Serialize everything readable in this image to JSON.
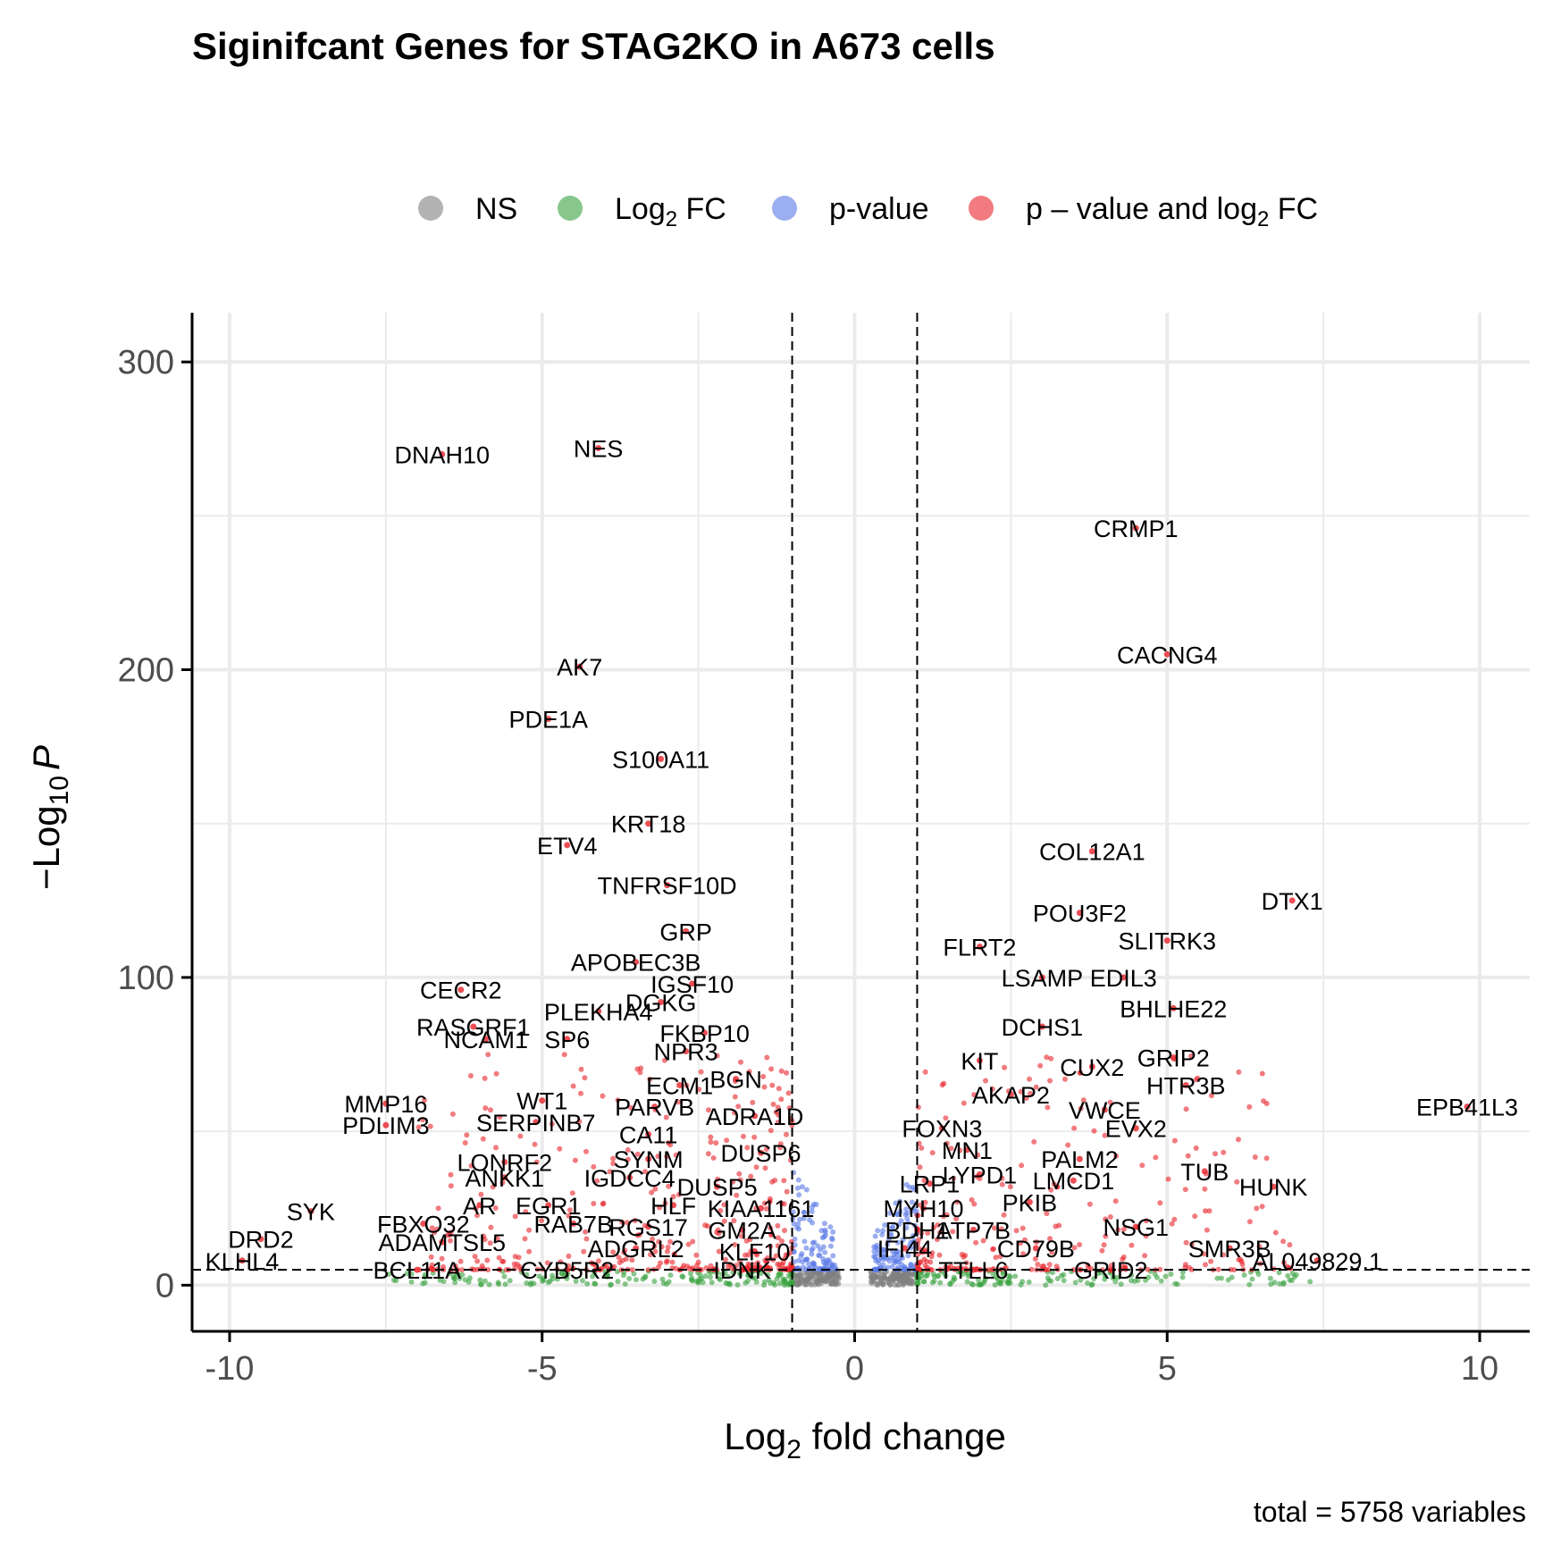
{
  "chart_data": {
    "type": "scatter",
    "title": "Siginifcant Genes for STAG2KO in A673 cells",
    "xlabel_main": "Log",
    "xlabel_sub": "2",
    "xlabel_rest": " fold change",
    "ylabel_prefix": "−Log",
    "ylabel_sub": "10",
    "ylabel_italic": "P",
    "caption": "total = 5758 variables",
    "xlim": [
      -10.6,
      10.8
    ],
    "ylim": [
      -15,
      316
    ],
    "x_ticks": [
      -10,
      -5,
      0,
      5,
      10
    ],
    "x_tick_labels": [
      "-10",
      "-5",
      "0",
      "5",
      "10"
    ],
    "y_ticks": [
      0,
      100,
      200,
      300
    ],
    "y_tick_labels": [
      "0",
      "100",
      "200",
      "300"
    ],
    "fc_cutoff": 1,
    "p_cutoff": 5,
    "grid": true,
    "legend_position": "top",
    "legend": [
      {
        "key": "ns",
        "label": "NS",
        "color": "#808080"
      },
      {
        "key": "fc",
        "label": "Log",
        "sub": "2",
        "rest": " FC",
        "color": "#38a13f"
      },
      {
        "key": "p",
        "label": "p-value",
        "color": "#5978e6"
      },
      {
        "key": "both",
        "label": "p – value and log",
        "sub": "2",
        "rest": " FC",
        "color": "#e8232a"
      }
    ],
    "labeled_points": [
      {
        "gene": "DNAH10",
        "x": -6.6,
        "y": 270
      },
      {
        "gene": "NES",
        "x": -4.1,
        "y": 272
      },
      {
        "gene": "CRMP1",
        "x": 4.5,
        "y": 246
      },
      {
        "gene": "CACNG4",
        "x": 5.0,
        "y": 205
      },
      {
        "gene": "AK7",
        "x": -4.4,
        "y": 201
      },
      {
        "gene": "PDE1A",
        "x": -4.9,
        "y": 184
      },
      {
        "gene": "S100A11",
        "x": -3.1,
        "y": 171
      },
      {
        "gene": "KRT18",
        "x": -3.3,
        "y": 150
      },
      {
        "gene": "ETV4",
        "x": -4.6,
        "y": 143
      },
      {
        "gene": "COL12A1",
        "x": 3.8,
        "y": 141
      },
      {
        "gene": "DTX1",
        "x": 7.0,
        "y": 125
      },
      {
        "gene": "TNFRSF10D",
        "x": -3.0,
        "y": 130
      },
      {
        "gene": "POU3F2",
        "x": 3.6,
        "y": 121
      },
      {
        "gene": "GRP",
        "x": -2.7,
        "y": 115
      },
      {
        "gene": "FLRT2",
        "x": 2.0,
        "y": 110
      },
      {
        "gene": "SLITRK3",
        "x": 5.0,
        "y": 112
      },
      {
        "gene": "APOBEC3B",
        "x": -3.5,
        "y": 105
      },
      {
        "gene": "IGSF10",
        "x": -2.6,
        "y": 98
      },
      {
        "gene": "LSAMP",
        "x": 3.0,
        "y": 100
      },
      {
        "gene": "EDIL3",
        "x": 4.3,
        "y": 100
      },
      {
        "gene": "CECR2",
        "x": -6.3,
        "y": 96
      },
      {
        "gene": "PLEKHA4",
        "x": -4.1,
        "y": 89
      },
      {
        "gene": "DGKG",
        "x": -3.1,
        "y": 92
      },
      {
        "gene": "BHLHE22",
        "x": 5.1,
        "y": 90
      },
      {
        "gene": "RASGRF1",
        "x": -6.1,
        "y": 84
      },
      {
        "gene": "SP6",
        "x": -4.6,
        "y": 80
      },
      {
        "gene": "FKBP10",
        "x": -2.4,
        "y": 82
      },
      {
        "gene": "DCHS1",
        "x": 3.0,
        "y": 84
      },
      {
        "gene": "NCAM1",
        "x": -5.9,
        "y": 80
      },
      {
        "gene": "NPR3",
        "x": -2.7,
        "y": 76
      },
      {
        "gene": "KIT",
        "x": 2.0,
        "y": 73
      },
      {
        "gene": "GRIP2",
        "x": 5.1,
        "y": 74
      },
      {
        "gene": "CUX2",
        "x": 3.8,
        "y": 71
      },
      {
        "gene": "AKAP2",
        "x": 2.5,
        "y": 62
      },
      {
        "gene": "HTR3B",
        "x": 5.3,
        "y": 65
      },
      {
        "gene": "ECM1",
        "x": -2.8,
        "y": 65
      },
      {
        "gene": "BGN",
        "x": -1.9,
        "y": 67
      },
      {
        "gene": "WT1",
        "x": -5.0,
        "y": 60
      },
      {
        "gene": "MMP16",
        "x": -7.5,
        "y": 59
      },
      {
        "gene": "PARVB",
        "x": -3.2,
        "y": 58
      },
      {
        "gene": "VWCE",
        "x": 4.0,
        "y": 57
      },
      {
        "gene": "EPB41L3",
        "x": 9.8,
        "y": 58
      },
      {
        "gene": "PDLIM3",
        "x": -7.5,
        "y": 52
      },
      {
        "gene": "SERPINB7",
        "x": -5.1,
        "y": 53
      },
      {
        "gene": "ADRA1D",
        "x": -1.6,
        "y": 55
      },
      {
        "gene": "FOXN3",
        "x": 1.4,
        "y": 51
      },
      {
        "gene": "EVX2",
        "x": 4.5,
        "y": 51
      },
      {
        "gene": "CA11",
        "x": -3.3,
        "y": 49
      },
      {
        "gene": "MN1",
        "x": 1.8,
        "y": 44
      },
      {
        "gene": "PALM2",
        "x": 3.6,
        "y": 41
      },
      {
        "gene": "LONRF2",
        "x": -5.6,
        "y": 40
      },
      {
        "gene": "SYNM",
        "x": -3.3,
        "y": 41
      },
      {
        "gene": "DUSP6",
        "x": -1.5,
        "y": 43
      },
      {
        "gene": "LYPD1",
        "x": 2.0,
        "y": 36
      },
      {
        "gene": "TUB",
        "x": 5.6,
        "y": 37
      },
      {
        "gene": "LMCD1",
        "x": 3.5,
        "y": 34
      },
      {
        "gene": "ANKK1",
        "x": -5.6,
        "y": 35
      },
      {
        "gene": "IGDCC4",
        "x": -3.6,
        "y": 35
      },
      {
        "gene": "DUSP5",
        "x": -2.2,
        "y": 32
      },
      {
        "gene": "LRP1",
        "x": 1.2,
        "y": 33
      },
      {
        "gene": "HUNK",
        "x": 6.7,
        "y": 32
      },
      {
        "gene": "SYK",
        "x": -8.7,
        "y": 24
      },
      {
        "gene": "PKIB",
        "x": 2.8,
        "y": 27
      },
      {
        "gene": "AR",
        "x": -6.0,
        "y": 26
      },
      {
        "gene": "EGR1",
        "x": -4.9,
        "y": 26
      },
      {
        "gene": "HLF",
        "x": -2.9,
        "y": 26
      },
      {
        "gene": "KIAA1161",
        "x": -1.5,
        "y": 25
      },
      {
        "gene": "MYH10",
        "x": 1.1,
        "y": 25
      },
      {
        "gene": "FBXO32",
        "x": -6.9,
        "y": 20
      },
      {
        "gene": "RAB7B",
        "x": -4.5,
        "y": 20
      },
      {
        "gene": "RGS17",
        "x": -3.3,
        "y": 19
      },
      {
        "gene": "GM2A",
        "x": -1.8,
        "y": 18
      },
      {
        "gene": "BDH1",
        "x": 1.0,
        "y": 18
      },
      {
        "gene": "ATP7B",
        "x": 1.9,
        "y": 18
      },
      {
        "gene": "NSG1",
        "x": 4.5,
        "y": 19
      },
      {
        "gene": "DRD2",
        "x": -9.5,
        "y": 15
      },
      {
        "gene": "ADAMTSL5",
        "x": -6.6,
        "y": 14
      },
      {
        "gene": "ADGRL2",
        "x": -3.5,
        "y": 12
      },
      {
        "gene": "KLF10",
        "x": -1.6,
        "y": 11
      },
      {
        "gene": "IFI44",
        "x": 0.8,
        "y": 12
      },
      {
        "gene": "CD79B",
        "x": 2.9,
        "y": 12
      },
      {
        "gene": "SMR3B",
        "x": 6.0,
        "y": 12
      },
      {
        "gene": "AL049829.1",
        "x": 7.4,
        "y": 8
      },
      {
        "gene": "KLHL4",
        "x": -9.8,
        "y": 8
      },
      {
        "gene": "BCL11A",
        "x": -7.0,
        "y": 5
      },
      {
        "gene": "CYB5R2",
        "x": -4.6,
        "y": 5
      },
      {
        "gene": "IDNK",
        "x": -1.8,
        "y": 5
      },
      {
        "gene": "TTLL6",
        "x": 1.9,
        "y": 5
      },
      {
        "gene": "GRID2",
        "x": 4.1,
        "y": 5
      }
    ]
  }
}
